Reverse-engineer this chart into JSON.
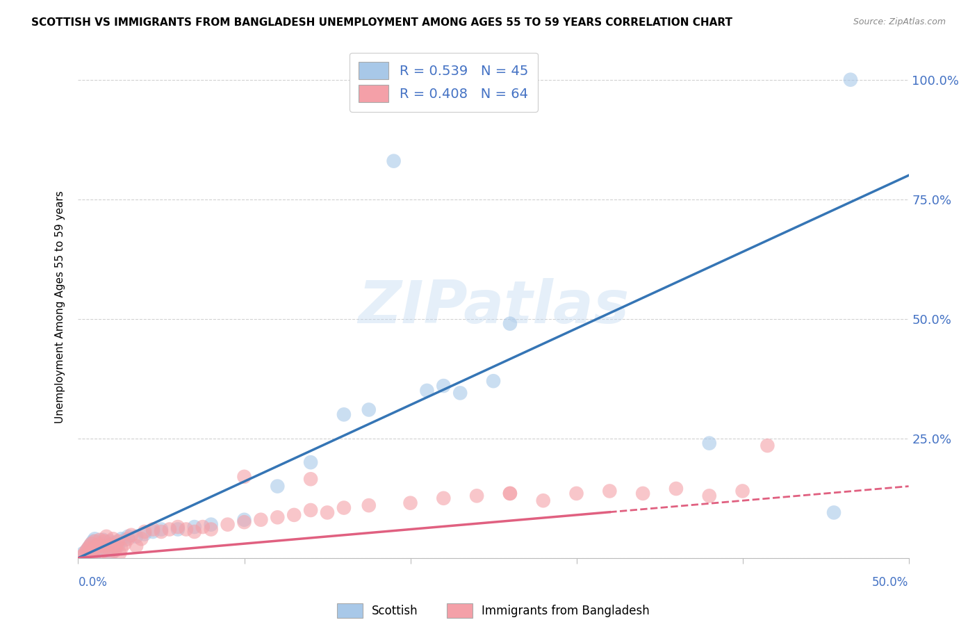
{
  "title": "SCOTTISH VS IMMIGRANTS FROM BANGLADESH UNEMPLOYMENT AMONG AGES 55 TO 59 YEARS CORRELATION CHART",
  "source": "Source: ZipAtlas.com",
  "ylabel": "Unemployment Among Ages 55 to 59 years",
  "watermark": "ZIPatlas",
  "blue_scatter_color": "#a8c8e8",
  "pink_scatter_color": "#f4a0a8",
  "blue_line_color": "#3575b5",
  "pink_line_color": "#e06080",
  "blue_line_x": [
    0.0,
    0.5
  ],
  "blue_line_y": [
    0.0,
    0.8
  ],
  "pink_line_x": [
    0.0,
    0.5
  ],
  "pink_line_y": [
    0.0,
    0.15
  ],
  "xlim": [
    0.0,
    0.5
  ],
  "ylim": [
    0.0,
    1.05
  ],
  "yticks": [
    0.0,
    0.25,
    0.5,
    0.75,
    1.0
  ],
  "ytick_labels": [
    "",
    "25.0%",
    "50.0%",
    "75.0%",
    "100.0%"
  ],
  "xtick_positions": [
    0.0,
    0.1,
    0.2,
    0.3,
    0.4,
    0.5
  ],
  "legend_top_labels": [
    "R = 0.539   N = 45",
    "R = 0.408   N = 64"
  ],
  "legend_bottom_labels": [
    "Scottish",
    "Immigrants from Bangladesh"
  ],
  "legend_bottom_colors": [
    "#a8c8e8",
    "#f4a0a8"
  ],
  "scottish_x": [
    0.003,
    0.005,
    0.006,
    0.007,
    0.008,
    0.009,
    0.01,
    0.01,
    0.011,
    0.012,
    0.013,
    0.014,
    0.015,
    0.016,
    0.017,
    0.018,
    0.019,
    0.02,
    0.021,
    0.022,
    0.024,
    0.026,
    0.028,
    0.03,
    0.035,
    0.04,
    0.045,
    0.05,
    0.06,
    0.07,
    0.08,
    0.1,
    0.12,
    0.14,
    0.16,
    0.175,
    0.19,
    0.21,
    0.22,
    0.23,
    0.25,
    0.26,
    0.38,
    0.455,
    0.465
  ],
  "scottish_y": [
    0.01,
    0.015,
    0.02,
    0.025,
    0.03,
    0.035,
    0.04,
    0.008,
    0.012,
    0.018,
    0.025,
    0.03,
    0.038,
    0.015,
    0.022,
    0.028,
    0.035,
    0.01,
    0.02,
    0.032,
    0.025,
    0.04,
    0.038,
    0.045,
    0.045,
    0.05,
    0.055,
    0.06,
    0.06,
    0.065,
    0.07,
    0.08,
    0.15,
    0.2,
    0.3,
    0.31,
    0.83,
    0.35,
    0.36,
    0.345,
    0.37,
    0.49,
    0.24,
    0.095,
    1.0
  ],
  "bangladesh_x": [
    0.003,
    0.004,
    0.005,
    0.006,
    0.007,
    0.008,
    0.008,
    0.009,
    0.01,
    0.01,
    0.011,
    0.012,
    0.013,
    0.014,
    0.015,
    0.016,
    0.017,
    0.018,
    0.019,
    0.02,
    0.021,
    0.022,
    0.023,
    0.024,
    0.025,
    0.026,
    0.028,
    0.03,
    0.032,
    0.035,
    0.038,
    0.04,
    0.045,
    0.05,
    0.055,
    0.06,
    0.065,
    0.07,
    0.075,
    0.08,
    0.09,
    0.1,
    0.11,
    0.12,
    0.13,
    0.14,
    0.15,
    0.16,
    0.175,
    0.2,
    0.22,
    0.24,
    0.26,
    0.28,
    0.3,
    0.32,
    0.34,
    0.36,
    0.38,
    0.4,
    0.415,
    0.1,
    0.14,
    0.26
  ],
  "bangladesh_y": [
    0.005,
    0.01,
    0.015,
    0.02,
    0.025,
    0.03,
    0.008,
    0.012,
    0.018,
    0.035,
    0.022,
    0.028,
    0.038,
    0.012,
    0.025,
    0.035,
    0.045,
    0.008,
    0.018,
    0.028,
    0.04,
    0.015,
    0.025,
    0.035,
    0.01,
    0.02,
    0.03,
    0.04,
    0.048,
    0.025,
    0.04,
    0.055,
    0.06,
    0.055,
    0.06,
    0.065,
    0.06,
    0.055,
    0.065,
    0.06,
    0.07,
    0.075,
    0.08,
    0.085,
    0.09,
    0.1,
    0.095,
    0.105,
    0.11,
    0.115,
    0.125,
    0.13,
    0.135,
    0.12,
    0.135,
    0.14,
    0.135,
    0.145,
    0.13,
    0.14,
    0.235,
    0.17,
    0.165,
    0.135
  ]
}
